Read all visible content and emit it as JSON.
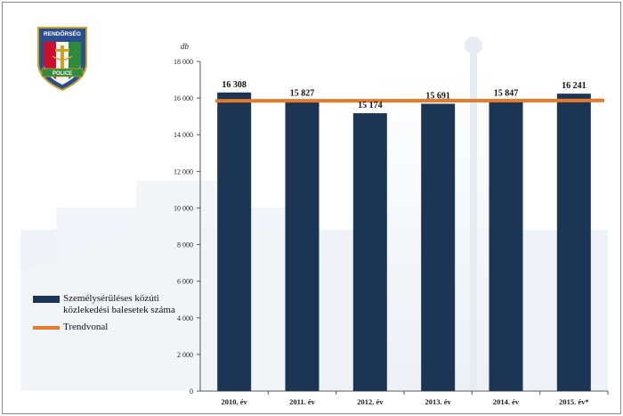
{
  "badge": {
    "top_text": "RENDŐRSÉG",
    "bottom_text": "POLICE"
  },
  "legend": {
    "bar_label": "Személysérüléses közúti közlekedési balesetek száma",
    "line_label": "Trendvonal"
  },
  "chart_data": {
    "type": "bar",
    "ylabel": "db",
    "ylim": [
      0,
      18000
    ],
    "yticks": [
      0,
      2000,
      4000,
      6000,
      8000,
      10000,
      12000,
      14000,
      16000,
      18000
    ],
    "ytick_labels": [
      "0",
      "2 000",
      "4 000",
      "6 000",
      "8 000",
      "10 000",
      "12 000",
      "14 000",
      "16 000",
      "18 000"
    ],
    "categories": [
      "2010. év",
      "2011. év",
      "2012. év",
      "2013. év",
      "2014. év",
      "2015. év*"
    ],
    "values": [
      16308,
      15827,
      15174,
      15691,
      15847,
      16241
    ],
    "value_labels": [
      "16 308",
      "15 827",
      "15 174",
      "15 691",
      "15 847",
      "16 241"
    ],
    "trend": {
      "name": "Trendvonal",
      "start": 15850,
      "end": 15870
    },
    "colors": {
      "bar": "#1d3555",
      "trend": "#e87a2a",
      "axis": "#555555"
    }
  }
}
